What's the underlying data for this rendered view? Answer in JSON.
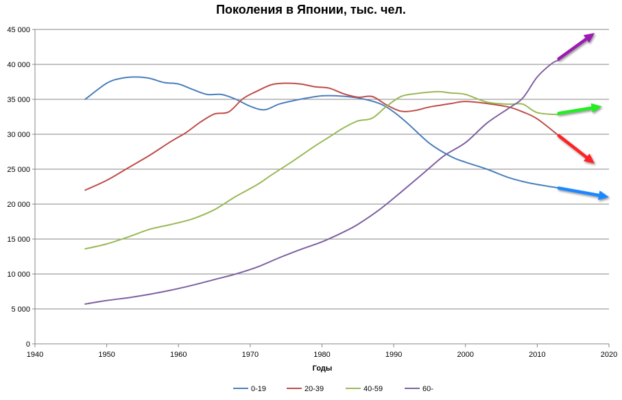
{
  "chart_data": {
    "type": "line",
    "title": "Поколения в Японии, тыс. чел.",
    "xlabel": "Годы",
    "ylabel": "",
    "xlim": [
      1940,
      2020
    ],
    "ylim": [
      0,
      45000
    ],
    "x_ticks": [
      1940,
      1950,
      1960,
      1970,
      1980,
      1990,
      2000,
      2010,
      2020
    ],
    "y_ticks": [
      0,
      5000,
      10000,
      15000,
      20000,
      25000,
      30000,
      35000,
      40000,
      45000
    ],
    "y_tick_labels": [
      "0",
      "5 000",
      "10 000",
      "15 000",
      "20 000",
      "25 000",
      "30 000",
      "35 000",
      "40 000",
      "45 000"
    ],
    "grid": "horizontal",
    "legend_position": "bottom",
    "series": [
      {
        "name": "0-19",
        "color": "#4a7ebb",
        "x": [
          1947,
          1950,
          1952,
          1954,
          1956,
          1958,
          1960,
          1962,
          1964,
          1966,
          1968,
          1970,
          1972,
          1974,
          1976,
          1978,
          1980,
          1982,
          1985,
          1988,
          1990,
          1992,
          1995,
          1998,
          2000,
          2003,
          2006,
          2009,
          2013
        ],
        "values": [
          35000,
          37300,
          38000,
          38200,
          38000,
          37400,
          37200,
          36400,
          35700,
          35700,
          35000,
          34000,
          33500,
          34300,
          34800,
          35200,
          35500,
          35500,
          35200,
          34400,
          33200,
          31500,
          28700,
          26800,
          26000,
          25000,
          23800,
          23000,
          22300
        ],
        "arrow": {
          "start_x": 2013,
          "start_y": 22300,
          "end_x": 2020,
          "end_y": 21000,
          "color": "#1e88ff"
        }
      },
      {
        "name": "20-39",
        "color": "#be4b48",
        "x": [
          1947,
          1950,
          1953,
          1956,
          1959,
          1961,
          1963,
          1965,
          1967,
          1969,
          1971,
          1973,
          1975,
          1977,
          1979,
          1981,
          1983,
          1985,
          1987,
          1989,
          1991,
          1993,
          1995,
          1998,
          2000,
          2003,
          2006,
          2008,
          2010,
          2013
        ],
        "values": [
          22000,
          23400,
          25200,
          27000,
          29000,
          30200,
          31700,
          32900,
          33200,
          35100,
          36200,
          37100,
          37300,
          37200,
          36800,
          36600,
          35800,
          35300,
          35400,
          34200,
          33300,
          33400,
          33900,
          34400,
          34700,
          34400,
          33900,
          33200,
          32200,
          29800
        ],
        "arrow": {
          "start_x": 2013,
          "start_y": 29800,
          "end_x": 2018,
          "end_y": 25800,
          "color": "#ff2020"
        }
      },
      {
        "name": "40-59",
        "color": "#98b954",
        "x": [
          1947,
          1950,
          1953,
          1956,
          1959,
          1962,
          1965,
          1968,
          1971,
          1973,
          1976,
          1979,
          1981,
          1983,
          1985,
          1987,
          1989,
          1991,
          1993,
          1996,
          1998,
          2000,
          2003,
          2006,
          2008,
          2010,
          2013
        ],
        "values": [
          13600,
          14300,
          15300,
          16400,
          17100,
          17900,
          19200,
          21100,
          22800,
          24200,
          26200,
          28300,
          29600,
          30900,
          31900,
          32300,
          34000,
          35400,
          35800,
          36100,
          35900,
          35700,
          34600,
          34300,
          34300,
          33100,
          32800
        ],
        "arrow": {
          "start_x": 2013,
          "start_y": 33000,
          "end_x": 2019,
          "end_y": 34000,
          "color": "#22ee22"
        }
      },
      {
        "name": "60-",
        "color": "#7d60a0",
        "x": [
          1947,
          1950,
          1953,
          1956,
          1959,
          1962,
          1965,
          1968,
          1971,
          1974,
          1977,
          1980,
          1983,
          1985,
          1988,
          1991,
          1994,
          1997,
          2000,
          2003,
          2006,
          2008,
          2010,
          2012,
          2013
        ],
        "values": [
          5700,
          6200,
          6600,
          7100,
          7700,
          8400,
          9200,
          10000,
          11000,
          12300,
          13500,
          14600,
          16000,
          17100,
          19200,
          21700,
          24300,
          26900,
          28800,
          31600,
          33700,
          35200,
          38200,
          40100,
          40600
        ],
        "arrow": {
          "start_x": 2013,
          "start_y": 40800,
          "end_x": 2018,
          "end_y": 44500,
          "color": "#9b1fb0"
        }
      }
    ]
  }
}
